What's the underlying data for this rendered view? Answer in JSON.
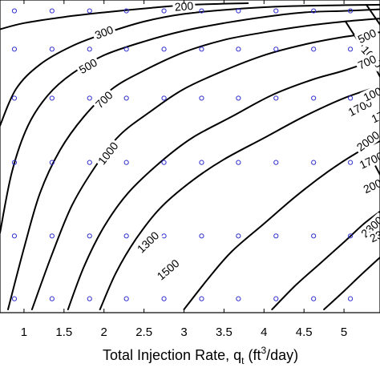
{
  "chart_data": {
    "type": "contour",
    "xlabel_main": "Total Injection Rate, q",
    "xlabel_sub": "t",
    "xlabel_unit_open": " (ft",
    "xlabel_unit_sup": "3",
    "xlabel_unit_close": "/day)",
    "xlim": [
      0.7,
      5.45
    ],
    "ylim": [
      0,
      1
    ],
    "x_ticks": [
      {
        "value": 1,
        "label": "1"
      },
      {
        "value": 1.5,
        "label": "1.5"
      },
      {
        "value": 2,
        "label": "2"
      },
      {
        "value": 2.5,
        "label": "2.5"
      },
      {
        "value": 3,
        "label": "3"
      },
      {
        "value": 3.5,
        "label": "3.5"
      },
      {
        "value": 4,
        "label": "4"
      },
      {
        "value": 4.5,
        "label": "4.5"
      },
      {
        "value": 5,
        "label": "5"
      }
    ],
    "sample_x": [
      0.88,
      1.35,
      1.82,
      2.28,
      2.75,
      3.22,
      3.68,
      4.15,
      4.62,
      5.08
    ],
    "sample_y": [
      0.975,
      0.85,
      0.69,
      0.48,
      0.24,
      0.035
    ],
    "contours": [
      {
        "label": "200",
        "points": [
          [
            0.7,
            0.915
          ],
          [
            1.0,
            0.935
          ],
          [
            1.5,
            0.955
          ],
          [
            2.0,
            0.97
          ],
          [
            2.6,
            0.985
          ],
          [
            3.1,
            0.995
          ],
          [
            3.8,
            1.0
          ]
        ],
        "label_at": [
          3.0,
          0.99
        ]
      },
      {
        "label": "300",
        "points": [
          [
            0.7,
            0.6
          ],
          [
            0.9,
            0.72
          ],
          [
            1.2,
            0.8
          ],
          [
            1.6,
            0.86
          ],
          [
            2.0,
            0.9
          ],
          [
            2.5,
            0.94
          ],
          [
            3.0,
            0.965
          ],
          [
            3.6,
            0.98
          ],
          [
            4.3,
            0.99
          ],
          [
            5.45,
            0.995
          ]
        ],
        "label_at": [
          2.0,
          0.905
        ]
      },
      {
        "label": "500",
        "points": [
          [
            0.7,
            0.25
          ],
          [
            0.85,
            0.45
          ],
          [
            1.05,
            0.6
          ],
          [
            1.3,
            0.7
          ],
          [
            1.6,
            0.77
          ],
          [
            2.0,
            0.83
          ],
          [
            2.5,
            0.875
          ],
          [
            3.0,
            0.91
          ],
          [
            3.5,
            0.935
          ],
          [
            4.0,
            0.955
          ],
          [
            4.5,
            0.97
          ],
          [
            5.0,
            0.975
          ],
          [
            5.45,
            0.98
          ]
        ],
        "label_at": [
          1.8,
          0.795
        ]
      },
      {
        "label": "700",
        "points": [
          [
            0.8,
            0.0
          ],
          [
            1.0,
            0.2
          ],
          [
            1.2,
            0.38
          ],
          [
            1.45,
            0.52
          ],
          [
            1.75,
            0.63
          ],
          [
            2.1,
            0.72
          ],
          [
            2.5,
            0.78
          ],
          [
            3.0,
            0.84
          ],
          [
            3.5,
            0.88
          ],
          [
            4.0,
            0.905
          ],
          [
            4.5,
            0.925
          ],
          [
            5.0,
            0.94
          ],
          [
            5.45,
            0.95
          ]
        ],
        "label_at": [
          2.0,
          0.685
        ]
      },
      {
        "label": "1000",
        "points": [
          [
            1.1,
            0.0
          ],
          [
            1.35,
            0.18
          ],
          [
            1.6,
            0.34
          ],
          [
            1.9,
            0.47
          ],
          [
            2.2,
            0.57
          ],
          [
            2.6,
            0.65
          ],
          [
            3.0,
            0.72
          ],
          [
            3.5,
            0.78
          ],
          [
            4.0,
            0.83
          ],
          [
            4.5,
            0.865
          ],
          [
            5.0,
            0.89
          ],
          [
            5.45,
            0.905
          ]
        ],
        "label_at": [
          2.05,
          0.51
        ]
      },
      {
        "label": "1300",
        "points": [
          [
            1.55,
            0.0
          ],
          [
            1.75,
            0.14
          ],
          [
            2.0,
            0.27
          ],
          [
            2.3,
            0.38
          ],
          [
            2.7,
            0.48
          ],
          [
            3.1,
            0.56
          ],
          [
            3.6,
            0.63
          ],
          [
            4.1,
            0.7
          ],
          [
            4.6,
            0.75
          ],
          [
            5.0,
            0.78
          ],
          [
            5.45,
            0.82
          ]
        ],
        "label_at": [
          2.55,
          0.22
        ]
      },
      {
        "label": "1500",
        "points": [
          [
            1.95,
            0.0
          ],
          [
            2.15,
            0.12
          ],
          [
            2.4,
            0.23
          ],
          [
            2.7,
            0.33
          ],
          [
            3.1,
            0.42
          ],
          [
            3.5,
            0.49
          ],
          [
            4.0,
            0.56
          ],
          [
            4.5,
            0.63
          ],
          [
            5.0,
            0.69
          ],
          [
            5.45,
            0.73
          ]
        ],
        "label_at": [
          2.8,
          0.13
        ]
      },
      {
        "label": "1700",
        "points": [
          [
            3.0,
            0.0
          ],
          [
            3.3,
            0.1
          ],
          [
            3.6,
            0.19
          ],
          [
            4.0,
            0.28
          ],
          [
            4.4,
            0.37
          ],
          [
            4.8,
            0.45
          ],
          [
            5.15,
            0.51
          ],
          [
            5.45,
            0.55
          ]
        ],
        "label_at": [
          5.2,
          0.66
        ]
      },
      {
        "label": "2000",
        "points": [
          [
            4.1,
            0.0
          ],
          [
            4.4,
            0.08
          ],
          [
            4.7,
            0.15
          ],
          [
            5.0,
            0.22
          ],
          [
            5.25,
            0.28
          ],
          [
            5.45,
            0.32
          ]
        ],
        "label_at": [
          5.3,
          0.55
        ]
      },
      {
        "label": "2300",
        "points": [
          [
            4.75,
            0.0
          ],
          [
            5.0,
            0.06
          ],
          [
            5.2,
            0.11
          ],
          [
            5.45,
            0.17
          ]
        ],
        "label_at": [
          5.35,
          0.27
        ]
      },
      {
        "label": "1000",
        "points": [
          [
            5.02,
            0.94
          ],
          [
            5.2,
            0.87
          ],
          [
            5.45,
            0.8
          ]
        ],
        "label_at": [
          5.35,
          0.825
        ]
      },
      {
        "label": "",
        "points": [
          [
            5.28,
            0.995
          ],
          [
            5.45,
            0.93
          ]
        ],
        "label_at": null
      },
      {
        "label": "",
        "points": [
          [
            5.25,
            0.86
          ],
          [
            5.45,
            0.76
          ]
        ],
        "label_at": null
      },
      {
        "label": "",
        "points": [
          [
            5.37,
            0.48
          ],
          [
            5.45,
            0.44
          ]
        ],
        "label_at": null
      }
    ],
    "edge_labels": [
      {
        "text": "500",
        "x": 5.18,
        "y": 0.88
      },
      {
        "text": "700",
        "x": 5.18,
        "y": 0.795
      },
      {
        "text": "100",
        "x": 5.25,
        "y": 0.69
      },
      {
        "text": "17",
        "x": 5.35,
        "y": 0.62
      },
      {
        "text": "1700",
        "x": 5.2,
        "y": 0.47
      },
      {
        "text": "200",
        "x": 5.25,
        "y": 0.39
      },
      {
        "text": "23",
        "x": 5.33,
        "y": 0.23
      }
    ]
  }
}
